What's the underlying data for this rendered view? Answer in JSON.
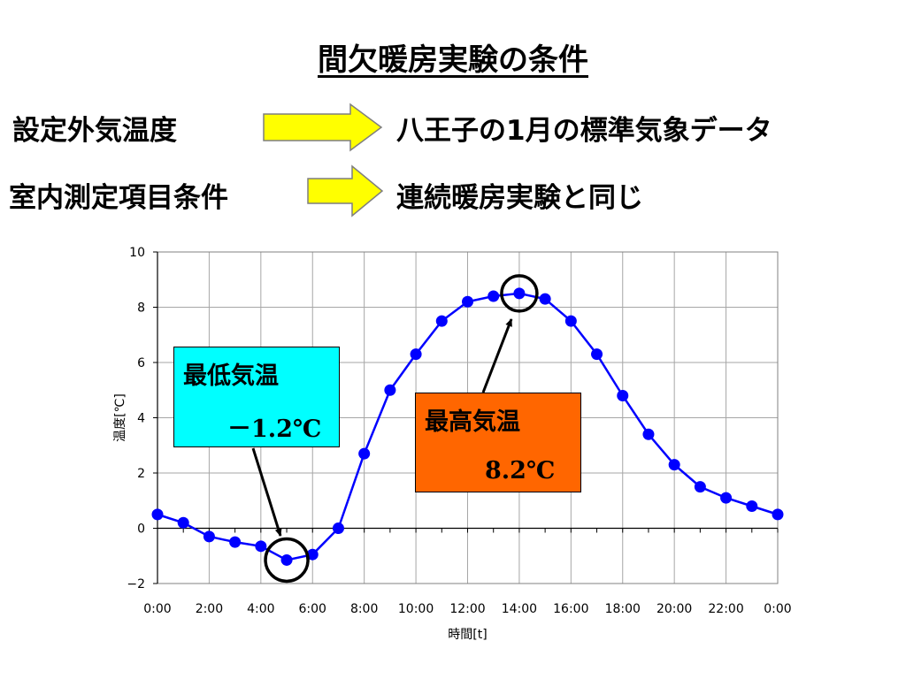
{
  "title": "間欠暖房実験の条件",
  "rows": [
    {
      "label": "設定外気温度",
      "value": "八王子の1月の標準気象データ"
    },
    {
      "label": "室内測定項目条件",
      "value": "連続暖房実験と同じ"
    }
  ],
  "colors": {
    "arrow_fill": "#ffff00",
    "series": "#0000ff",
    "min_box": "#00ffff",
    "max_box": "#ff6600"
  },
  "annotations": {
    "min": {
      "label": "最低気温",
      "value": "－1.2℃"
    },
    "max": {
      "label": "最高気温",
      "value": "8.2℃"
    }
  },
  "chart_data": {
    "type": "line",
    "xlabel": "時間[t]",
    "ylabel": "温度[℃]",
    "ylim": [
      -2,
      10
    ],
    "yticks": [
      "−2",
      "0",
      "2",
      "4",
      "6",
      "8",
      "10"
    ],
    "xticks": [
      "0:00",
      "2:00",
      "4:00",
      "6:00",
      "8:00",
      "10:00",
      "12:00",
      "14:00",
      "16:00",
      "18:00",
      "20:00",
      "22:00",
      "0:00"
    ],
    "grid": true,
    "x": [
      0,
      1,
      2,
      3,
      4,
      5,
      6,
      7,
      8,
      9,
      10,
      11,
      12,
      13,
      14,
      15,
      16,
      17,
      18,
      19,
      20,
      21,
      22,
      23,
      24
    ],
    "series": [
      {
        "values": [
          0.5,
          0.2,
          -0.3,
          -0.5,
          -0.65,
          -1.15,
          -0.95,
          0.0,
          2.7,
          5.0,
          6.3,
          7.5,
          8.2,
          8.4,
          8.5,
          8.3,
          7.5,
          6.3,
          4.8,
          3.4,
          2.3,
          1.5,
          1.1,
          0.8,
          0.5
        ]
      }
    ]
  }
}
